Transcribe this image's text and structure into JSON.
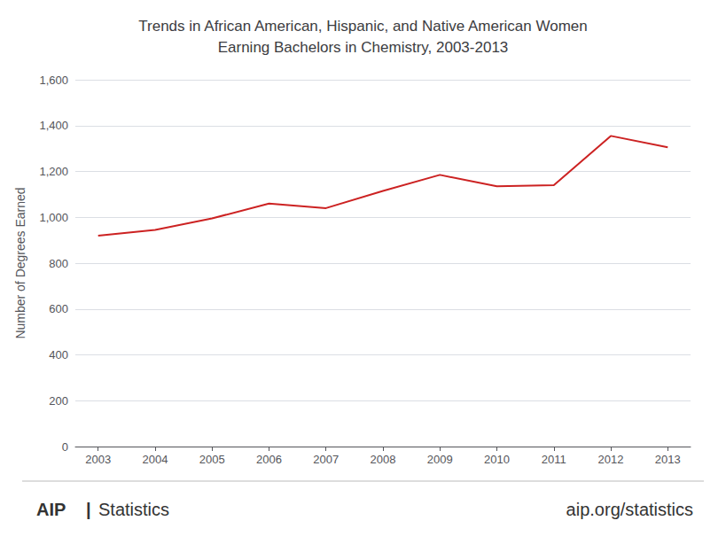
{
  "chart_data": {
    "type": "line",
    "title": "Trends in African American, Hispanic, and Native American Women\nEarning Bachelors in Chemistry, 2003-2013",
    "y_label": "Number of Degrees Earned",
    "x": [
      2003,
      2004,
      2005,
      2006,
      2007,
      2008,
      2009,
      2010,
      2011,
      2012,
      2013
    ],
    "values": [
      920,
      945,
      995,
      1060,
      1040,
      1115,
      1185,
      1135,
      1140,
      1355,
      1305
    ],
    "color": "#cc2222",
    "xlim": [
      2002.6,
      2013.4
    ],
    "xticks": [
      2003,
      2004,
      2005,
      2006,
      2007,
      2008,
      2009,
      2010,
      2011,
      2012,
      2013
    ],
    "ylim": [
      0,
      1600
    ],
    "yticks": [
      0,
      200,
      400,
      600,
      800,
      1000,
      1200,
      1400,
      1600
    ],
    "grid": true,
    "annotations": [
      "AIP",
      "|",
      "Statistics",
      "aip.org/statistics"
    ]
  }
}
